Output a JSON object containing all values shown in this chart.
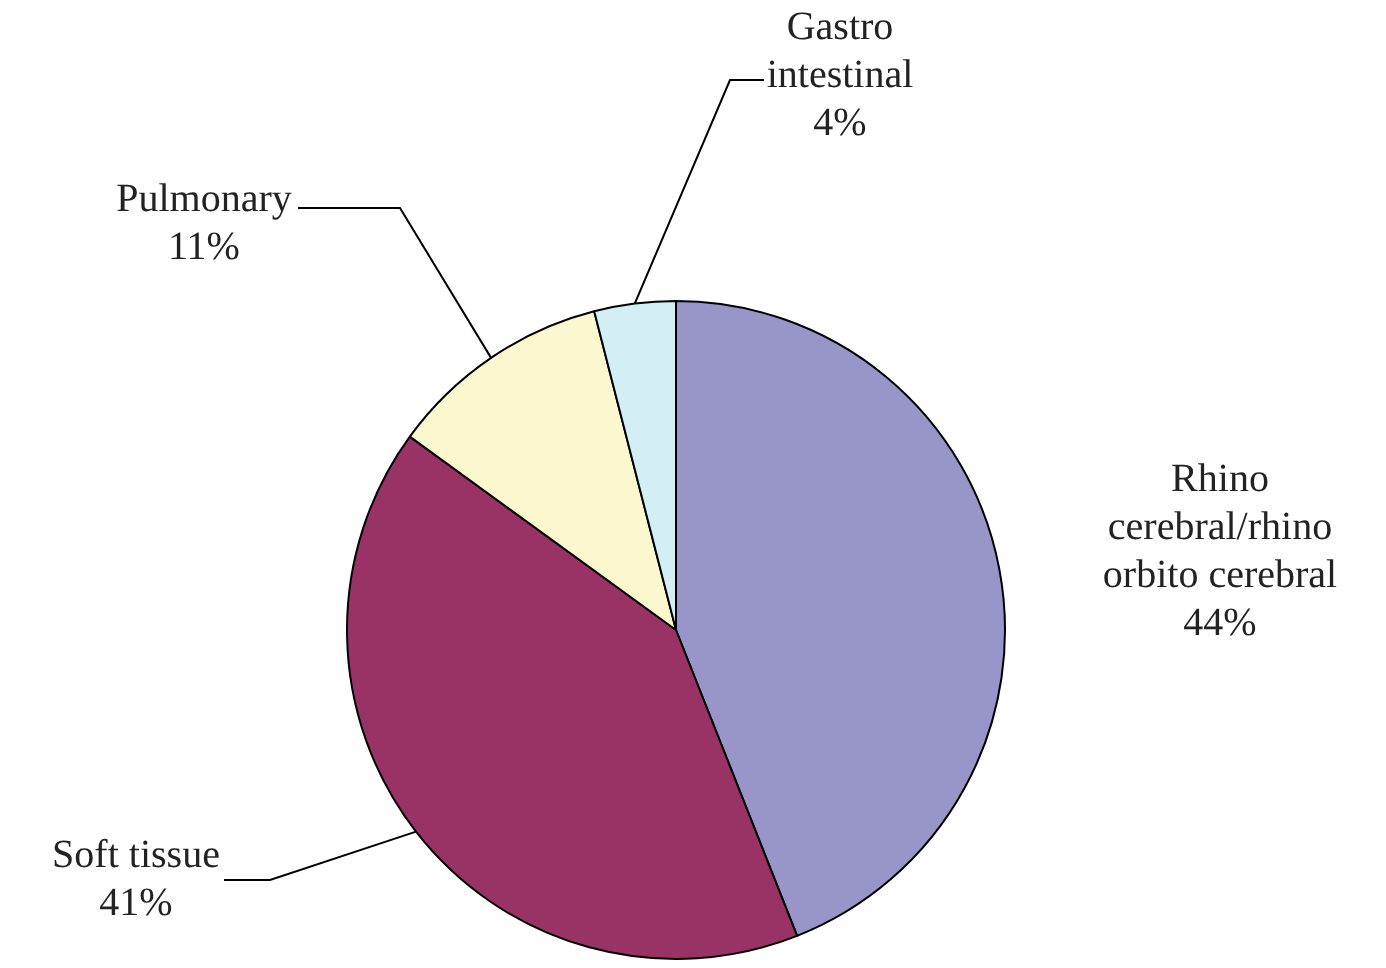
{
  "chart_data": {
    "type": "pie",
    "categories": [
      "Rhino cerebral/rhino orbito cerebral",
      "Soft tissue",
      "Pulmonary",
      "Gastro intestinal"
    ],
    "values": [
      44,
      41,
      11,
      4
    ],
    "value_labels": [
      "44%",
      "41%",
      "11%",
      "4%"
    ],
    "colors": [
      "#9896c8",
      "#993366",
      "#fbf8d0",
      "#d3eef5"
    ],
    "legend": false
  }
}
